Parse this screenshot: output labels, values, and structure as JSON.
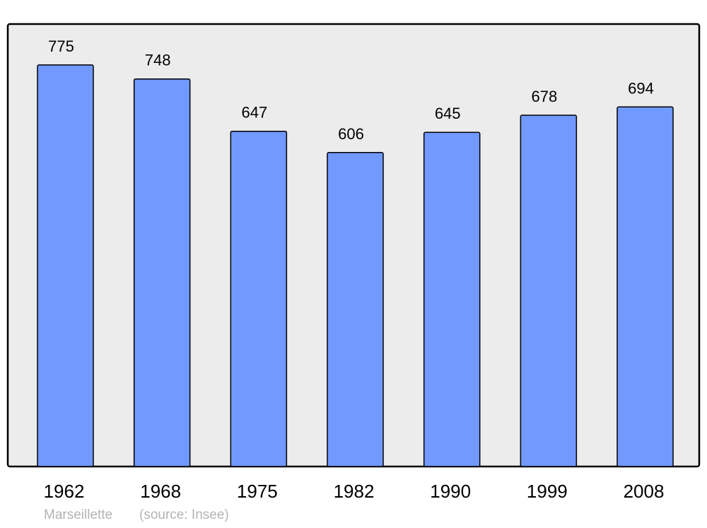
{
  "chart_data": {
    "type": "bar",
    "categories": [
      "1962",
      "1968",
      "1975",
      "1982",
      "1990",
      "1999",
      "2008"
    ],
    "values": [
      775,
      748,
      647,
      606,
      645,
      678,
      694
    ],
    "title": "",
    "xlabel": "",
    "ylabel": "",
    "ylim": [
      0,
      854
    ],
    "grid": false,
    "data_labels": true,
    "colors": {
      "bar": "#7299ff",
      "background": "#ececec",
      "border": "#000000"
    }
  },
  "footer": {
    "place": "Marseillette",
    "source": "(source: Insee)"
  }
}
